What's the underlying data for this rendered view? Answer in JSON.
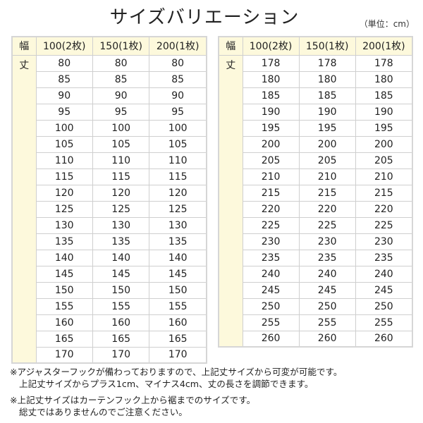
{
  "title": "サイズバリエーション",
  "unit": "（単位：cm）",
  "header": {
    "width_label": "幅",
    "columns": [
      "100(2枚)",
      "150(1枚)",
      "200(1枚)"
    ]
  },
  "length_label": "丈",
  "tables": [
    {
      "rows": [
        [
          80,
          80,
          80
        ],
        [
          85,
          85,
          85
        ],
        [
          90,
          90,
          90
        ],
        [
          95,
          95,
          95
        ],
        [
          100,
          100,
          100
        ],
        [
          105,
          105,
          105
        ],
        [
          110,
          110,
          110
        ],
        [
          115,
          115,
          115
        ],
        [
          120,
          120,
          120
        ],
        [
          125,
          125,
          125
        ],
        [
          130,
          130,
          130
        ],
        [
          135,
          135,
          135
        ],
        [
          140,
          140,
          140
        ],
        [
          145,
          145,
          145
        ],
        [
          150,
          150,
          150
        ],
        [
          155,
          155,
          155
        ],
        [
          160,
          160,
          160
        ],
        [
          165,
          165,
          165
        ],
        [
          170,
          170,
          170
        ]
      ]
    },
    {
      "rows": [
        [
          178,
          178,
          178
        ],
        [
          180,
          180,
          180
        ],
        [
          185,
          185,
          185
        ],
        [
          190,
          190,
          190
        ],
        [
          195,
          195,
          195
        ],
        [
          200,
          200,
          200
        ],
        [
          205,
          205,
          205
        ],
        [
          210,
          210,
          210
        ],
        [
          215,
          215,
          215
        ],
        [
          220,
          220,
          220
        ],
        [
          225,
          225,
          225
        ],
        [
          230,
          230,
          230
        ],
        [
          235,
          235,
          235
        ],
        [
          240,
          240,
          240
        ],
        [
          245,
          245,
          245
        ],
        [
          250,
          250,
          250
        ],
        [
          255,
          255,
          255
        ],
        [
          260,
          260,
          260
        ]
      ]
    }
  ],
  "notes": [
    [
      "※アジャスターフックが備わっておりますので、上記丈サイズから可変が可能です。",
      "上記丈サイズからプラス1cm、マイナス4cm、丈の長さを調節できます。"
    ],
    [
      "※上記丈サイズはカーテンフック上から裾までのサイズです。",
      "総丈ではありませんのでご注意ください。"
    ]
  ],
  "colors": {
    "header_bg": "#fdf9dc",
    "border": "#cfcfcf"
  }
}
